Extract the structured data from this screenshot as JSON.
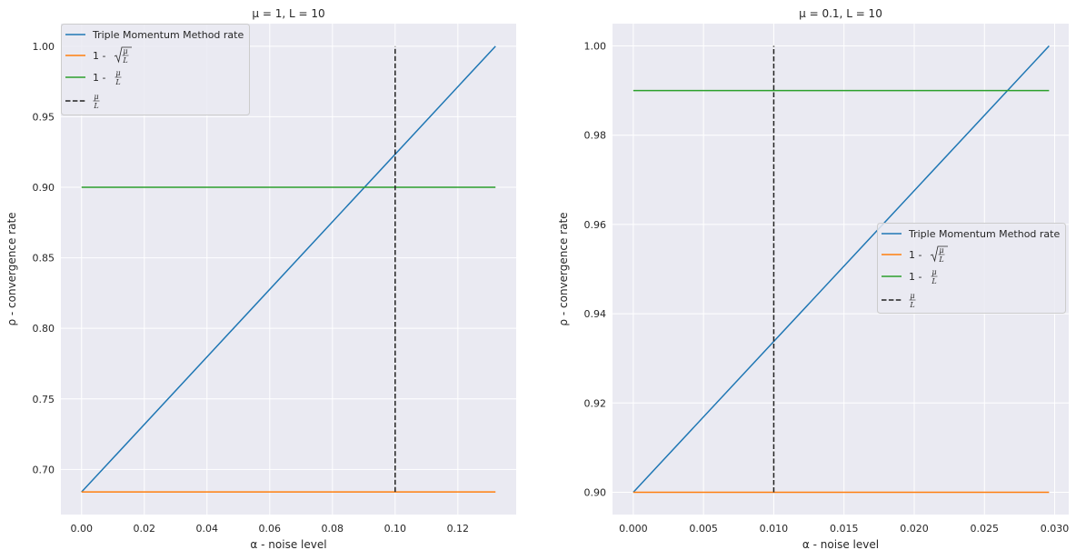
{
  "chart_data": [
    {
      "type": "line",
      "title": "μ = 1, L = 10",
      "xlabel": "α - noise level",
      "ylabel": "ρ - convergence rate",
      "xlim": [
        -0.0066,
        0.1386
      ],
      "ylim": [
        0.668,
        1.016
      ],
      "xticks": [
        0,
        0.02,
        0.04,
        0.06,
        0.08,
        0.1,
        0.12
      ],
      "xtick_labels": [
        "0.00",
        "0.02",
        "0.04",
        "0.06",
        "0.08",
        "0.10",
        "0.12"
      ],
      "yticks": [
        0.7,
        0.75,
        0.8,
        0.85,
        0.9,
        0.95,
        1.0
      ],
      "ytick_labels": [
        "0.70",
        "0.75",
        "0.80",
        "0.85",
        "0.90",
        "0.95",
        "1.00"
      ],
      "grid": true,
      "legend_position": "top-left",
      "series": [
        {
          "name": "Triple Momentum Method rate",
          "color": "#1f77b4",
          "style": "solid",
          "x": [
            0,
            0.132
          ],
          "y": [
            0.684,
            1.0
          ]
        },
        {
          "name": "1 - √(μ/L)",
          "color": "#ff7f0e",
          "style": "solid",
          "x": [
            0,
            0.132
          ],
          "y": [
            0.684,
            0.684
          ]
        },
        {
          "name": "1 - μ/L",
          "color": "#2ca02c",
          "style": "solid",
          "x": [
            0,
            0.132
          ],
          "y": [
            0.9,
            0.9
          ]
        },
        {
          "name": "μ/L",
          "color": "#222222",
          "style": "dashed",
          "x": [
            0.1,
            0.1
          ],
          "y": [
            0.684,
            1.0
          ]
        }
      ]
    },
    {
      "type": "line",
      "title": "μ = 0.1, L = 10",
      "xlabel": "α - noise level",
      "ylabel": "ρ - convergence rate",
      "xlim": [
        -0.00148,
        0.031
      ],
      "ylim": [
        0.895,
        1.005
      ],
      "xticks": [
        0,
        0.005,
        0.01,
        0.015,
        0.02,
        0.025,
        0.03
      ],
      "xtick_labels": [
        "0.000",
        "0.005",
        "0.010",
        "0.015",
        "0.020",
        "0.025",
        "0.030"
      ],
      "yticks": [
        0.9,
        0.92,
        0.94,
        0.96,
        0.98,
        1.0
      ],
      "ytick_labels": [
        "0.90",
        "0.92",
        "0.94",
        "0.96",
        "0.98",
        "1.00"
      ],
      "grid": true,
      "legend_position": "center-right",
      "series": [
        {
          "name": "Triple Momentum Method rate",
          "color": "#1f77b4",
          "style": "solid",
          "x": [
            0,
            0.0296
          ],
          "y": [
            0.9,
            1.0
          ]
        },
        {
          "name": "1 - √(μ/L)",
          "color": "#ff7f0e",
          "style": "solid",
          "x": [
            0,
            0.0296
          ],
          "y": [
            0.9,
            0.9
          ]
        },
        {
          "name": "1 - μ/L",
          "color": "#2ca02c",
          "style": "solid",
          "x": [
            0,
            0.0296
          ],
          "y": [
            0.99,
            0.99
          ]
        },
        {
          "name": "μ/L",
          "color": "#222222",
          "style": "dashed",
          "x": [
            0.01,
            0.01
          ],
          "y": [
            0.9,
            1.0
          ]
        }
      ]
    }
  ],
  "legend_entries": [
    {
      "text": "Triple Momentum Method rate"
    },
    {
      "prefix": "1 - ",
      "sqrt": true,
      "num": "μ",
      "den": "L"
    },
    {
      "prefix": "1 - ",
      "sqrt": false,
      "num": "μ",
      "den": "L"
    },
    {
      "prefix": "",
      "sqrt": false,
      "num": "μ",
      "den": "L"
    }
  ],
  "colors": {
    "plot_bg": "#eaeaf2",
    "grid": "#ffffff"
  }
}
